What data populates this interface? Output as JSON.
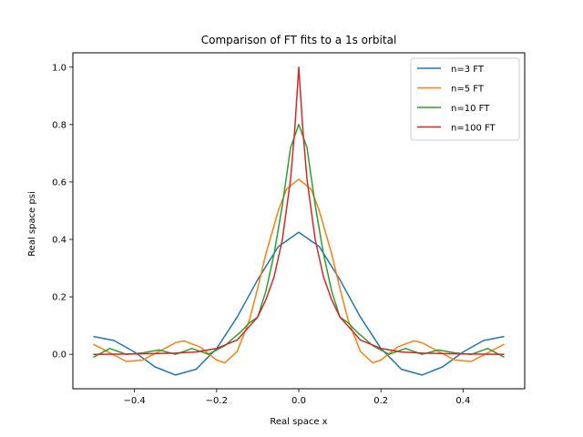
{
  "chart_data": {
    "type": "line",
    "title": "Comparison of FT fits to a 1s orbital",
    "xlabel": "Real space x",
    "ylabel": "Real space psi",
    "xlim": [
      -0.55,
      0.55
    ],
    "ylim": [
      -0.12,
      1.05
    ],
    "xticks": [
      -0.4,
      -0.2,
      0.0,
      0.2,
      0.4
    ],
    "yticks": [
      0.0,
      0.2,
      0.4,
      0.6,
      0.8,
      1.0
    ],
    "grid": false,
    "legend_position": "top-right",
    "series": [
      {
        "name": "n=3 FT",
        "color": "#1f77b4",
        "x": [
          -0.5,
          -0.45,
          -0.4,
          -0.35,
          -0.3,
          -0.25,
          -0.2,
          -0.15,
          -0.1,
          -0.05,
          0.0,
          0.05,
          0.1,
          0.15,
          0.2,
          0.25,
          0.3,
          0.35,
          0.4,
          0.45,
          0.5
        ],
        "y": [
          0.062,
          0.048,
          0.008,
          -0.044,
          -0.072,
          -0.052,
          0.02,
          0.13,
          0.26,
          0.375,
          0.425,
          0.375,
          0.26,
          0.13,
          0.02,
          -0.052,
          -0.072,
          -0.044,
          0.008,
          0.048,
          0.062
        ]
      },
      {
        "name": "n=5 FT",
        "color": "#ff7f0e",
        "x": [
          -0.5,
          -0.46,
          -0.42,
          -0.38,
          -0.34,
          -0.3,
          -0.28,
          -0.24,
          -0.2,
          -0.18,
          -0.15,
          -0.12,
          -0.1,
          -0.08,
          -0.05,
          -0.03,
          0.0,
          0.03,
          0.05,
          0.08,
          0.1,
          0.12,
          0.15,
          0.18,
          0.2,
          0.24,
          0.28,
          0.3,
          0.34,
          0.38,
          0.42,
          0.46,
          0.5
        ],
        "y": [
          0.035,
          0.005,
          -0.025,
          -0.02,
          0.01,
          0.04,
          0.047,
          0.025,
          -0.02,
          -0.03,
          0.01,
          0.12,
          0.23,
          0.35,
          0.5,
          0.575,
          0.61,
          0.575,
          0.5,
          0.35,
          0.23,
          0.12,
          0.01,
          -0.03,
          -0.02,
          0.025,
          0.047,
          0.04,
          0.01,
          -0.02,
          -0.025,
          0.005,
          0.035
        ]
      },
      {
        "name": "n=10 FT",
        "color": "#2ca02c",
        "x": [
          -0.5,
          -0.46,
          -0.42,
          -0.38,
          -0.34,
          -0.3,
          -0.26,
          -0.22,
          -0.18,
          -0.14,
          -0.12,
          -0.1,
          -0.08,
          -0.06,
          -0.04,
          -0.02,
          0.0,
          0.02,
          0.04,
          0.06,
          0.08,
          0.1,
          0.12,
          0.14,
          0.18,
          0.22,
          0.26,
          0.3,
          0.34,
          0.38,
          0.42,
          0.46,
          0.5
        ],
        "y": [
          -0.01,
          0.02,
          0.0,
          0.005,
          0.015,
          0.0,
          0.02,
          0.0,
          0.03,
          0.08,
          0.11,
          0.13,
          0.22,
          0.35,
          0.52,
          0.72,
          0.8,
          0.72,
          0.52,
          0.35,
          0.22,
          0.13,
          0.11,
          0.08,
          0.03,
          0.0,
          0.02,
          0.0,
          0.015,
          0.005,
          0.0,
          0.02,
          -0.01
        ]
      },
      {
        "name": "n=100 FT",
        "color": "#d62728",
        "x": [
          -0.5,
          -0.4,
          -0.3,
          -0.25,
          -0.2,
          -0.15,
          -0.1,
          -0.08,
          -0.06,
          -0.04,
          -0.02,
          -0.01,
          0.0,
          0.01,
          0.02,
          0.04,
          0.06,
          0.08,
          0.1,
          0.15,
          0.2,
          0.25,
          0.3,
          0.4,
          0.5
        ],
        "y": [
          0.0,
          0.001,
          0.004,
          0.008,
          0.02,
          0.05,
          0.13,
          0.19,
          0.27,
          0.4,
          0.61,
          0.78,
          1.0,
          0.78,
          0.61,
          0.4,
          0.27,
          0.19,
          0.13,
          0.05,
          0.02,
          0.008,
          0.004,
          0.001,
          0.0
        ]
      }
    ]
  }
}
